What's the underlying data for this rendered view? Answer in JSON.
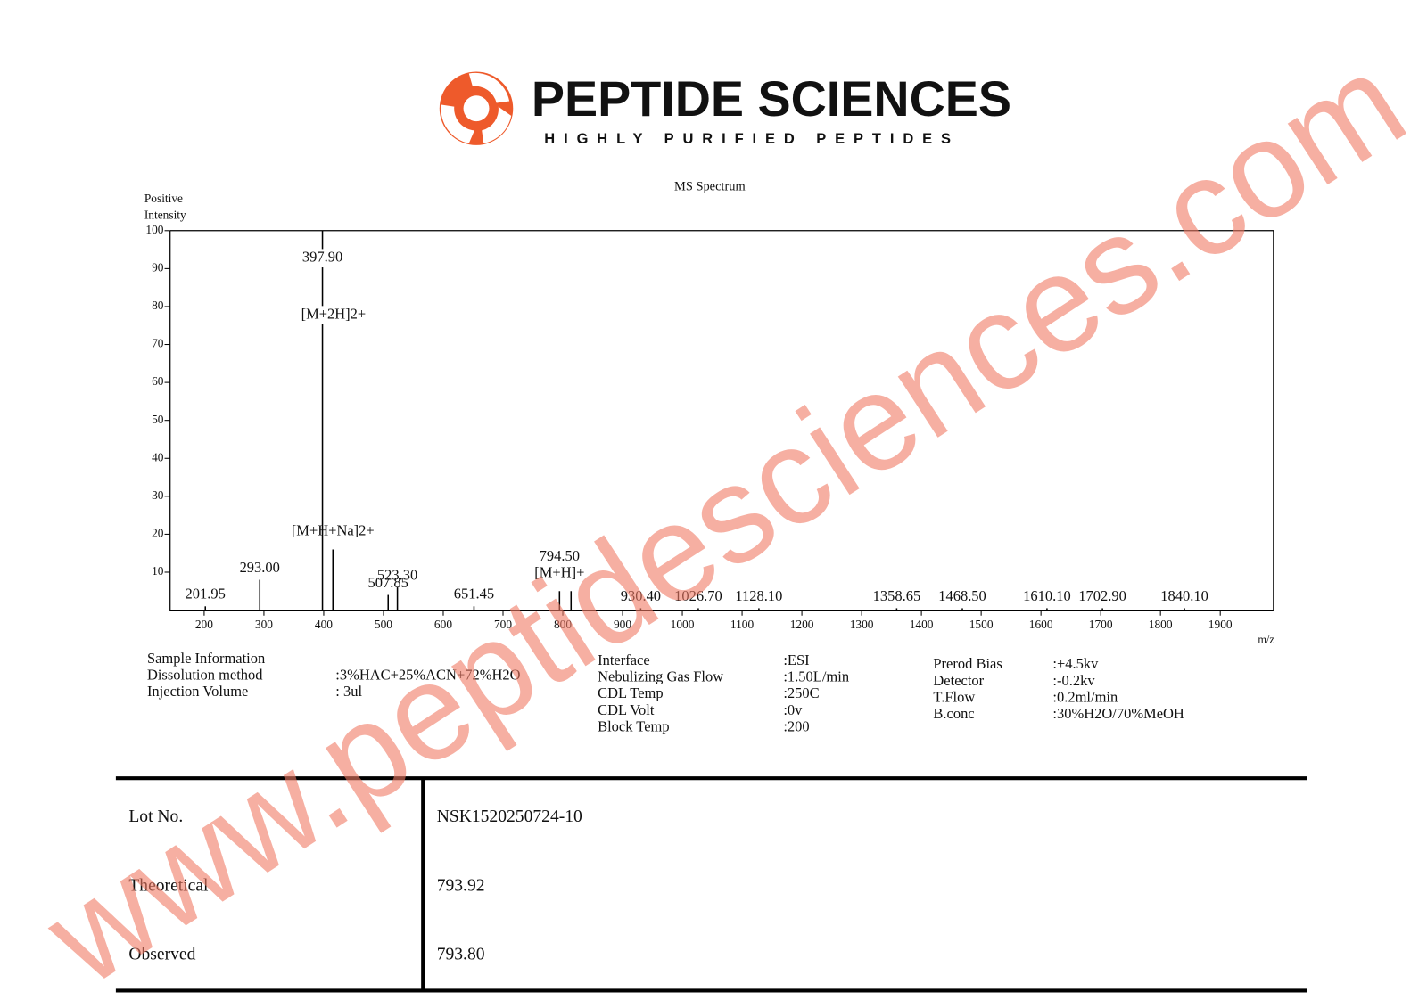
{
  "header": {
    "brand": "PEPTIDE SCIENCES",
    "tagline": "HIGHLY PURIFIED PEPTIDES"
  },
  "chart_data": {
    "type": "bar",
    "title": "MS Spectrum",
    "ylabel": [
      "Positive",
      "Intensity"
    ],
    "xlabel": "m/z",
    "x": [
      201.95,
      293.0,
      397.9,
      415.4,
      507.85,
      523.3,
      651.45,
      794.5,
      813.8,
      930.4,
      1026.7,
      1128.1,
      1358.65,
      1468.5,
      1610.1,
      1702.9,
      1840.1
    ],
    "x_labels": [
      "201.95",
      "293.00",
      "397.90",
      null,
      "507.85",
      "523.30",
      "651.45",
      "794.50",
      null,
      "930.40",
      "1026.70",
      "1128.10",
      "1358.65",
      "1468.50",
      "1610.10",
      "1702.90",
      "1840.10"
    ],
    "ion_labels": [
      null,
      null,
      "[M+2H]2+",
      "[M+H+Na]2+",
      null,
      null,
      null,
      "[M+H]+",
      null,
      null,
      null,
      null,
      null,
      null,
      null,
      null,
      null
    ],
    "values": [
      1,
      8,
      100,
      16,
      4,
      6,
      1,
      5,
      5,
      0.5,
      0.5,
      0.5,
      0.5,
      0.5,
      0.5,
      0.5,
      0.5
    ],
    "color": "#000000",
    "xlim": [
      143,
      1989
    ],
    "ylim": [
      0,
      100
    ],
    "xticks": [
      200,
      300,
      400,
      500,
      600,
      700,
      800,
      900,
      1000,
      1100,
      1200,
      1300,
      1400,
      1500,
      1600,
      1700,
      1800,
      1900
    ],
    "yticks": [
      10,
      20,
      30,
      40,
      50,
      60,
      70,
      80,
      90,
      100
    ]
  },
  "settings": [
    [
      [
        "Sample Information",
        null
      ],
      [
        "Dissolution method",
        ":3%HAC+25%ACN+72%H2O"
      ],
      [
        "Injection Volume",
        ": 3ul"
      ]
    ],
    [
      [
        "Interface",
        ":ESI"
      ],
      [
        "Nebulizing Gas Flow",
        ":1.50L/min"
      ],
      [
        "CDL Temp",
        ":250C"
      ],
      [
        "CDL Volt",
        ":0v"
      ],
      [
        "Block Temp",
        ":200"
      ]
    ],
    [
      [
        "Prerod Bias",
        ":+4.5kv"
      ],
      [
        "Detector",
        ":-0.2kv"
      ],
      [
        "T.Flow",
        ":0.2ml/min"
      ],
      [
        "B.conc",
        ":30%H2O/70%MeOH"
      ]
    ]
  ],
  "table": {
    "rows": [
      [
        "Lot No.",
        "NSK1520250724-10"
      ],
      [
        "Theoretical",
        "793.92"
      ],
      [
        "Observed",
        "793.80"
      ]
    ]
  },
  "watermark": "www.peptidesciences.com"
}
